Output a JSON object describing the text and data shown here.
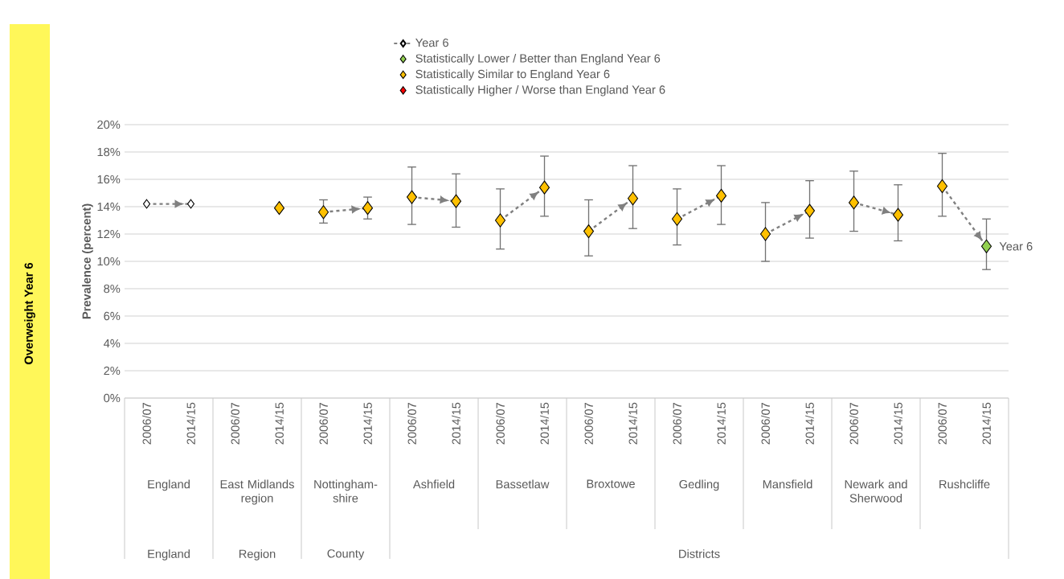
{
  "chart_data": {
    "type": "scatter",
    "ylabel": "Prevalence (percent)",
    "categories": [
      "2006/07",
      "2014/15",
      "2006/07",
      "2014/15",
      "2006/07",
      "2014/15",
      "2006/07",
      "2014/15",
      "2006/07",
      "2014/15",
      "2006/07",
      "2014/15",
      "2006/07",
      "2014/15",
      "2006/07",
      "2014/15",
      "2006/07",
      "2014/15",
      "2006/07",
      "2014/15"
    ],
    "annotations": [
      "Overweight Year 6",
      "England",
      "East Midlands region",
      "Nottingham-shire",
      "Ashfield",
      "Bassetlaw",
      "Broxtowe",
      "Gedling",
      "Mansfield",
      "Newark and Sherwood",
      "Rushcliffe",
      "England",
      "Region",
      "County",
      "Districts"
    ],
    "series": [
      {
        "name": "Year 6",
        "type": "line",
        "color": "#808080",
        "line_style": "dashed",
        "marker": "diamond",
        "values": [
          14.2,
          14.2,
          null,
          null,
          13.6,
          13.9,
          14.7,
          14.4,
          13.0,
          15.4,
          12.2,
          14.6,
          13.1,
          14.8,
          12.0,
          13.7,
          14.3,
          13.4,
          15.5,
          11.1
        ]
      },
      {
        "name": "Statistically Lower / Better than England Year 6",
        "type": "scatter",
        "color": "#92d050",
        "marker": "diamond",
        "values": [
          null,
          null,
          null,
          null,
          null,
          null,
          null,
          null,
          null,
          null,
          null,
          null,
          null,
          null,
          null,
          null,
          null,
          null,
          null,
          11.1
        ],
        "errors": [
          null,
          null,
          null,
          null,
          null,
          null,
          null,
          null,
          null,
          null,
          null,
          null,
          null,
          null,
          null,
          null,
          null,
          null,
          null,
          [
            9.4,
            13.1
          ]
        ]
      },
      {
        "name": "Statistically Similar to England Year 6",
        "type": "scatter",
        "color": "#ffc000",
        "marker": "diamond",
        "values": [
          null,
          null,
          null,
          13.9,
          13.6,
          13.9,
          14.7,
          14.4,
          13.0,
          15.4,
          12.2,
          14.6,
          13.1,
          14.8,
          12.0,
          13.7,
          14.3,
          13.4,
          15.5,
          null
        ],
        "errors": [
          null,
          null,
          null,
          null,
          [
            12.8,
            14.5
          ],
          [
            13.1,
            14.7
          ],
          [
            12.7,
            16.9
          ],
          [
            12.5,
            16.4
          ],
          [
            10.9,
            15.3
          ],
          [
            13.3,
            17.7
          ],
          [
            10.4,
            14.5
          ],
          [
            12.4,
            17.0
          ],
          [
            11.2,
            15.3
          ],
          [
            12.7,
            17.0
          ],
          [
            10.0,
            14.3
          ],
          [
            11.7,
            15.9
          ],
          [
            12.2,
            16.6
          ],
          [
            11.5,
            15.6
          ],
          [
            13.3,
            17.9
          ],
          null
        ]
      },
      {
        "name": "Statistically Higher / Worse than England Year 6",
        "type": "scatter",
        "color": "#ff0000",
        "marker": "diamond",
        "values": [
          null,
          null,
          null,
          null,
          null,
          null,
          null,
          null,
          null,
          null,
          null,
          null,
          null,
          null,
          null,
          null,
          null,
          null,
          null,
          null
        ]
      }
    ],
    "ylim": [
      0,
      20
    ],
    "yticks": [
      {
        "value": 0,
        "label": "0%"
      },
      {
        "value": 2,
        "label": "2%"
      },
      {
        "value": 4,
        "label": "4%"
      },
      {
        "value": 6,
        "label": "6%"
      },
      {
        "value": 8,
        "label": "8%"
      },
      {
        "value": 10,
        "label": "10%"
      },
      {
        "value": 12,
        "label": "12%"
      },
      {
        "value": 14,
        "label": "14%"
      },
      {
        "value": 16,
        "label": "16%"
      },
      {
        "value": 18,
        "label": "18%"
      },
      {
        "value": 20,
        "label": "20%"
      }
    ],
    "grid": "y",
    "legend": "top"
  }
}
